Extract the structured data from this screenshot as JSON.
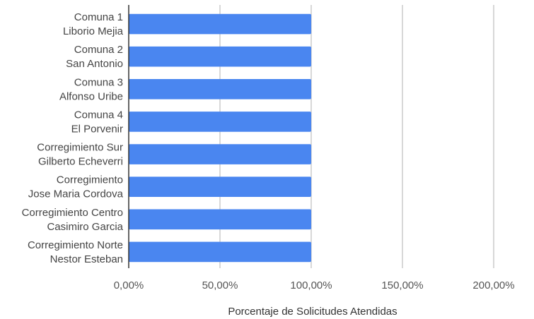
{
  "chart_data": {
    "type": "bar",
    "orientation": "horizontal",
    "categories": [
      [
        "Comuna 1",
        "Liborio Mejia"
      ],
      [
        "Comuna 2",
        "San Antonio"
      ],
      [
        "Comuna 3",
        "Alfonso Uribe"
      ],
      [
        "Comuna 4",
        "El Porvenir"
      ],
      [
        "Corregimiento Sur",
        "Gilberto Echeverri"
      ],
      [
        "Corregimiento",
        "Jose Maria Cordova"
      ],
      [
        "Corregimiento Centro",
        "Casimiro Garcia"
      ],
      [
        "Corregimiento Norte",
        "Nestor Esteban"
      ]
    ],
    "values": [
      100,
      100,
      100,
      100,
      100,
      100,
      100,
      100
    ],
    "xlabel": "Porcentaje de Solicitudes Atendidas",
    "ylabel": "",
    "xlim": [
      0,
      200
    ],
    "xticks": [
      0,
      50,
      100,
      150,
      200
    ],
    "xtick_labels": [
      "0,00%",
      "50,00%",
      "100,00%",
      "150,00%",
      "200,00%"
    ],
    "grid": "vertical",
    "bar_color": "#4a86f0",
    "grid_color": "#cccccc",
    "axis_color": "#333333"
  }
}
